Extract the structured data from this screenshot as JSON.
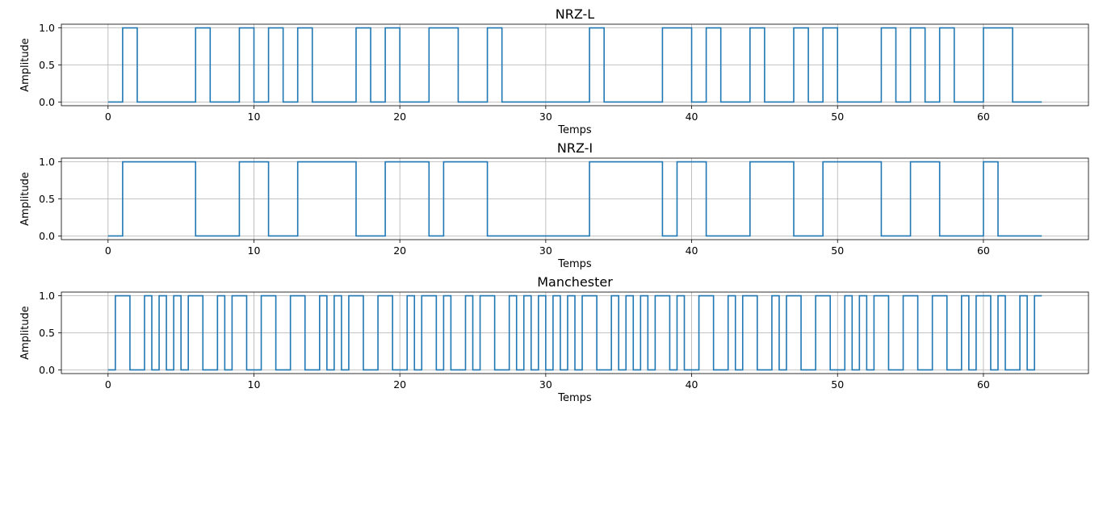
{
  "chart_data": [
    {
      "type": "line",
      "step": "post",
      "title": "NRZ-L",
      "xlabel": "Temps",
      "ylabel": "Amplitude",
      "xlim": [
        -3.2,
        67.2
      ],
      "ylim": [
        -0.05,
        1.05
      ],
      "xticks": [
        0,
        10,
        20,
        30,
        40,
        50,
        60
      ],
      "yticks": [
        0.0,
        0.5,
        1.0
      ],
      "xtick_labels": [
        "0",
        "10",
        "20",
        "30",
        "40",
        "50",
        "60"
      ],
      "ytick_labels": [
        "0.0",
        "0.5",
        "1.0"
      ],
      "grid": true,
      "color": "#1f77b4",
      "bits": [
        0,
        1,
        0,
        0,
        0,
        0,
        1,
        0,
        0,
        1,
        0,
        1,
        0,
        1,
        0,
        0,
        0,
        1,
        0,
        1,
        0,
        0,
        1,
        1,
        0,
        0,
        1,
        0,
        0,
        0,
        0,
        0,
        0,
        1,
        0,
        0,
        0,
        0,
        1,
        1,
        0,
        1,
        0,
        0,
        1,
        0,
        0,
        1,
        0,
        1,
        0,
        0,
        0,
        1,
        0,
        1,
        0,
        1,
        0,
        0,
        1,
        1,
        0,
        0
      ]
    },
    {
      "type": "line",
      "step": "post",
      "title": "NRZ-I",
      "xlabel": "Temps",
      "ylabel": "Amplitude",
      "xlim": [
        -3.2,
        67.2
      ],
      "ylim": [
        -0.05,
        1.05
      ],
      "xticks": [
        0,
        10,
        20,
        30,
        40,
        50,
        60
      ],
      "yticks": [
        0.0,
        0.5,
        1.0
      ],
      "xtick_labels": [
        "0",
        "10",
        "20",
        "30",
        "40",
        "50",
        "60"
      ],
      "ytick_labels": [
        "0.0",
        "0.5",
        "1.0"
      ],
      "grid": true,
      "color": "#1f77b4",
      "bits": [
        0,
        1,
        1,
        1,
        1,
        1,
        0,
        0,
        0,
        1,
        1,
        0,
        0,
        1,
        1,
        1,
        1,
        0,
        0,
        1,
        1,
        1,
        0,
        1,
        1,
        1,
        0,
        0,
        0,
        0,
        0,
        0,
        0,
        1,
        1,
        1,
        1,
        1,
        0,
        1,
        1,
        0,
        0,
        0,
        1,
        1,
        1,
        0,
        0,
        1,
        1,
        1,
        1,
        0,
        0,
        1,
        1,
        0,
        0,
        0,
        1,
        0,
        0,
        0
      ]
    },
    {
      "type": "line",
      "step": "post",
      "title": "Manchester",
      "xlabel": "Temps",
      "ylabel": "Amplitude",
      "xlim": [
        -3.2,
        67.2
      ],
      "ylim": [
        -0.05,
        1.05
      ],
      "xticks": [
        0,
        10,
        20,
        30,
        40,
        50,
        60
      ],
      "yticks": [
        0.0,
        0.5,
        1.0
      ],
      "xtick_labels": [
        "0",
        "10",
        "20",
        "30",
        "40",
        "50",
        "60"
      ],
      "ytick_labels": [
        "0.0",
        "0.5",
        "1.0"
      ],
      "grid": true,
      "color": "#1f77b4",
      "bits": [
        0,
        1,
        0,
        0,
        0,
        0,
        1,
        0,
        0,
        1,
        0,
        1,
        0,
        1,
        0,
        0,
        0,
        1,
        0,
        1,
        0,
        0,
        1,
        1,
        0,
        0,
        1,
        0,
        0,
        0,
        0,
        0,
        0,
        1,
        0,
        0,
        0,
        0,
        1,
        1,
        0,
        1,
        0,
        0,
        1,
        0,
        0,
        1,
        0,
        1,
        0,
        0,
        0,
        1,
        0,
        1,
        0,
        1,
        0,
        0,
        1,
        1,
        0,
        0
      ],
      "encoding": "bit 0 = low then high, bit 1 = high then low"
    }
  ]
}
